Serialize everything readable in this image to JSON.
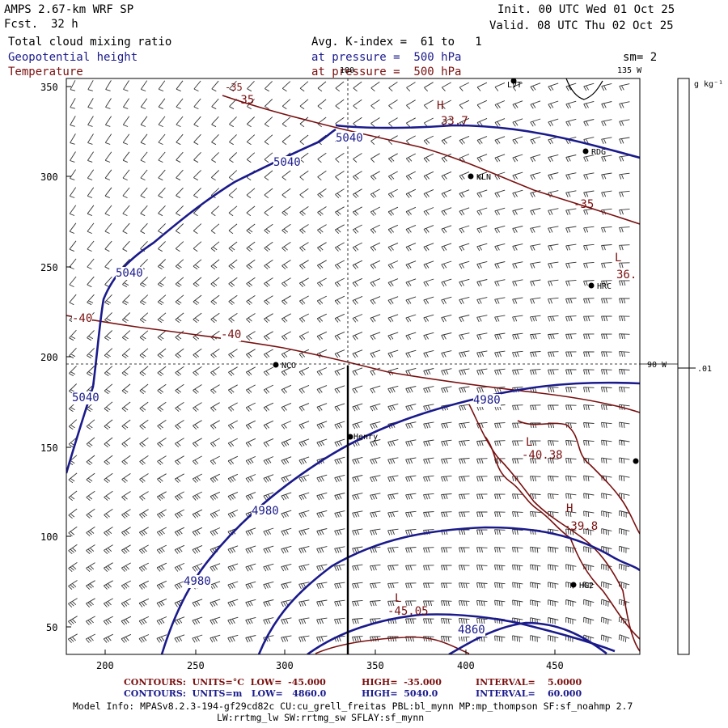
{
  "header": {
    "model": "AMPS 2.67-km WRF SP",
    "fcst_label": "Fcst.",
    "fcst_value": "32 h",
    "init": "Init. 00 UTC Wed 01 Oct 25",
    "valid": "Valid. 08 UTC Thu 02 Oct 25"
  },
  "fields": {
    "shaded": "Total cloud mixing ratio",
    "contour1": "Geopotential height",
    "contour2": "Temperature",
    "avg": "Avg. K-index =  61 to   1",
    "pressure1": "at pressure =  500 hPa",
    "pressure2": "at pressure =  500 hPa",
    "sm": "sm= 2"
  },
  "axes": {
    "y_ticks": [
      "350",
      "300",
      "250",
      "200",
      "150",
      "100",
      "50"
    ],
    "x_ticks": [
      "200",
      "250",
      "300",
      "350",
      "400",
      "450"
    ],
    "lon_top_180": "180",
    "lon_top_135": "135 W",
    "lon_right_90": "90 W"
  },
  "colorbar": {
    "units": "g kg⁻¹",
    "tick": ".01"
  },
  "stations": [
    "LVT",
    "RDG",
    "KLN",
    "HRC",
    "NCO",
    "Henry",
    "HG2"
  ],
  "contour_labels": {
    "height": [
      "5040",
      "5040",
      "5040",
      "5040",
      "4980",
      "4980",
      "4980",
      "4860"
    ],
    "temp": [
      "-35",
      "-35",
      "-40",
      "-40",
      "-35"
    ],
    "temp_extrema": [
      "33.7",
      "-40.38",
      "-39.8",
      "-45.05",
      "36."
    ],
    "hl": [
      "H",
      "L",
      "H",
      "L",
      "L"
    ]
  },
  "footer": {
    "line1_a": "CONTOURS:  UNITS=°C  LOW=  -45.000",
    "line1_b": "HIGH=  -35.000",
    "line1_c": "INTERVAL=    5.0000",
    "line2_a": "CONTOURS:  UNITS=m   LOW=   4860.0",
    "line2_b": "HIGH=  5040.0",
    "line2_c": "INTERVAL=    60.000",
    "info1": "Model Info: MPASv8.2.3-194-gf29cd82c CU:cu_grell_freitas PBL:bl_mynn MP:mp_thompson SF:sf_noahmp 2.7",
    "info2": "LW:rrtmg_lw SW:rrtmg_sw SFLAY:sf_mynn"
  },
  "colors": {
    "height": "#1a1a8c",
    "temp": "#7a1010"
  }
}
